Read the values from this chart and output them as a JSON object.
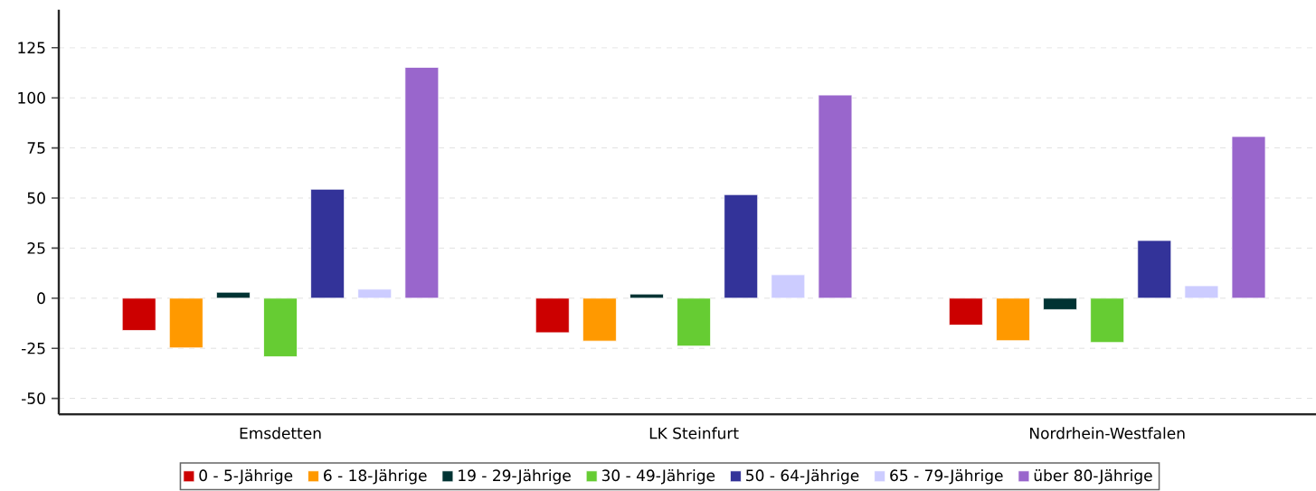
{
  "chart_data": {
    "type": "bar",
    "categories": [
      "Emsdetten",
      "LK Steinfurt",
      "Nordrhein-Westfalen"
    ],
    "series": [
      {
        "name": "0 - 5-Jährige",
        "color": "#cc0000",
        "values": [
          -16.1,
          -17.2,
          -13.4
        ]
      },
      {
        "name": "6 - 18-Jährige",
        "color": "#ff9900",
        "values": [
          -24.8,
          -21.4,
          -21.2
        ]
      },
      {
        "name": "19 - 29-Jährige",
        "color": "#003333",
        "values": [
          3.0,
          2.1,
          -5.7
        ]
      },
      {
        "name": "30 - 49-Jährige",
        "color": "#66cc33",
        "values": [
          -29.2,
          -23.9,
          -22.1
        ]
      },
      {
        "name": "50 - 64-Jährige",
        "color": "#333399",
        "values": [
          54.4,
          51.7,
          28.8
        ]
      },
      {
        "name": "65 - 79-Jährige",
        "color": "#ccccff",
        "values": [
          4.5,
          11.7,
          6.2
        ]
      },
      {
        "name": "über 80-Jährige",
        "color": "#9966cc",
        "values": [
          115.2,
          101.4,
          80.7
        ]
      }
    ],
    "ylim": [
      -58,
      144
    ],
    "yticks": [
      -50,
      -25,
      0,
      25,
      50,
      75,
      100,
      125
    ],
    "grid": "y",
    "legend": "bottom"
  }
}
